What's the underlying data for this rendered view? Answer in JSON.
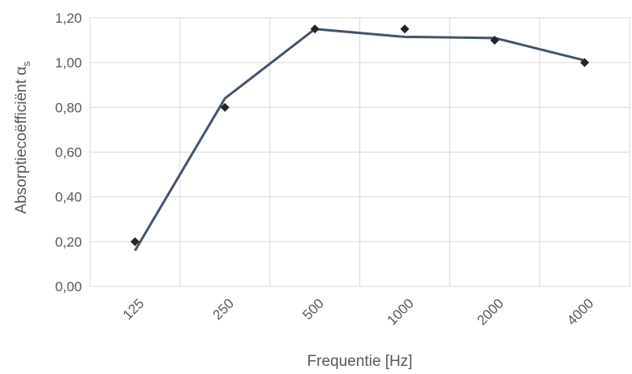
{
  "chart_data": {
    "type": "line",
    "xlabel": "Frequentie [Hz]",
    "ylabel": "Absorptiecoëfficiënt α",
    "ylabel_subscript": "s",
    "ylim": [
      0,
      1.2
    ],
    "yticks": [
      "0,00",
      "0,20",
      "0,40",
      "0,60",
      "0,80",
      "1,00",
      "1,20"
    ],
    "categories": [
      "125",
      "250",
      "500",
      "1000",
      "2000",
      "4000"
    ],
    "grid": true,
    "legend": "none",
    "series": [
      {
        "style": "line",
        "color": "#44546a",
        "values": [
          0.16,
          0.84,
          1.15,
          1.115,
          1.11,
          1.01
        ]
      },
      {
        "style": "markers",
        "marker": "diamond",
        "color": "#262626",
        "values": [
          0.2,
          0.8,
          1.15,
          1.15,
          1.1,
          1.0
        ]
      }
    ]
  }
}
